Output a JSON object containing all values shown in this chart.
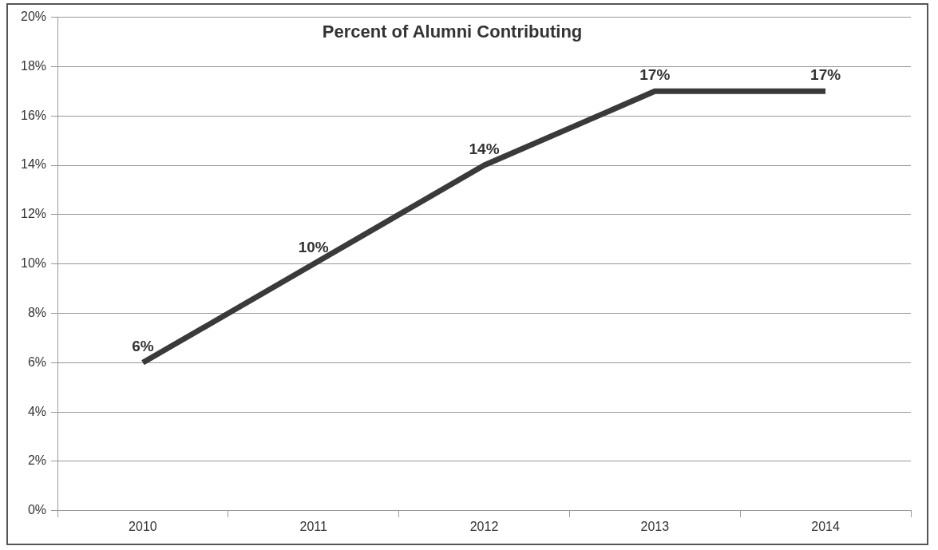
{
  "chart_data": {
    "type": "line",
    "title": "Percent of Alumni Contributing",
    "categories": [
      "2010",
      "2011",
      "2012",
      "2013",
      "2014"
    ],
    "series": [
      {
        "color": "#3a3a3a",
        "values": [
          6,
          10,
          14,
          17,
          17
        ],
        "value_labels": [
          "6%",
          "10%",
          "14%",
          "17%",
          "17%"
        ]
      }
    ],
    "ylim": [
      0,
      20
    ],
    "yticks": [
      {
        "value": 0,
        "label": "0%"
      },
      {
        "value": 2,
        "label": "2%"
      },
      {
        "value": 4,
        "label": "4%"
      },
      {
        "value": 6,
        "label": "6%"
      },
      {
        "value": 8,
        "label": "8%"
      },
      {
        "value": 10,
        "label": "10%"
      },
      {
        "value": 12,
        "label": "12%"
      },
      {
        "value": 14,
        "label": "14%"
      },
      {
        "value": 16,
        "label": "16%"
      },
      {
        "value": 18,
        "label": "18%"
      },
      {
        "value": 20,
        "label": "20%"
      }
    ],
    "grid": "y",
    "legend": false,
    "marker": "none",
    "line_style": "solid"
  }
}
